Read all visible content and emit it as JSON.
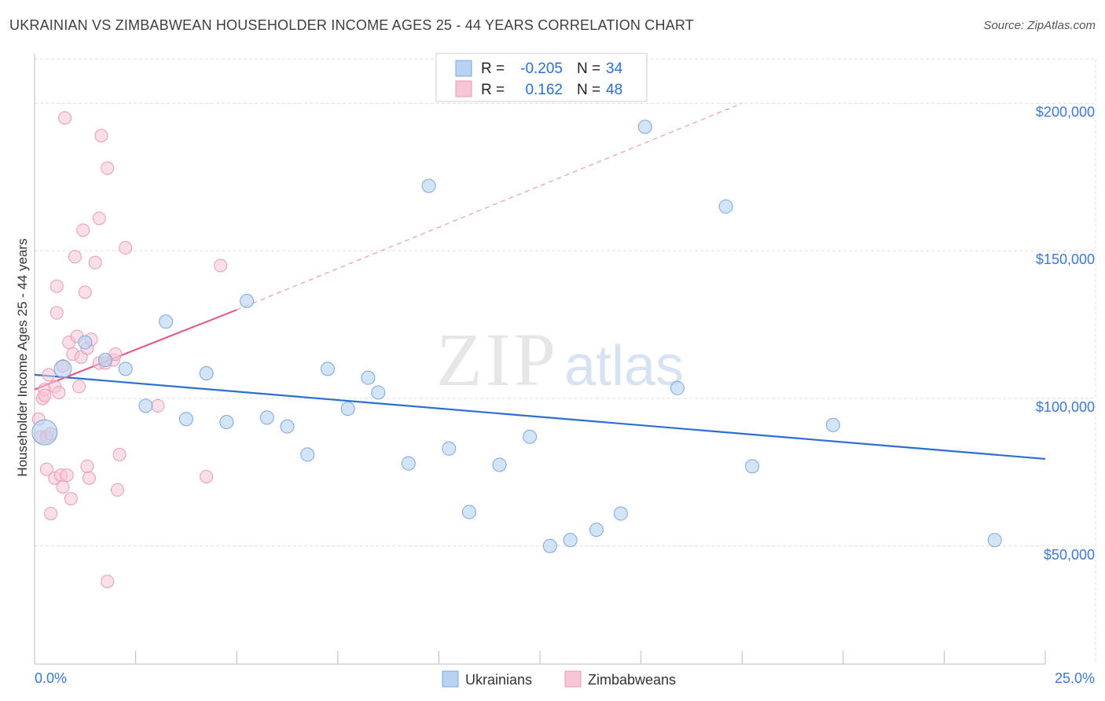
{
  "title": "UKRAINIAN VS ZIMBABWEAN HOUSEHOLDER INCOME AGES 25 - 44 YEARS CORRELATION CHART",
  "source": "Source: ZipAtlas.com",
  "watermark": {
    "zip": "ZIP",
    "atlas": "atlas"
  },
  "colors": {
    "blue_fill": "#b8d2f2",
    "blue_stroke": "#7aa6e0",
    "blue_line": "#2b6fd1",
    "pink_fill": "#f7c5d5",
    "pink_stroke": "#e99ab3",
    "pink_line": "#e0608a",
    "grid": "#dddddd",
    "axis_label": "#3c78d8"
  },
  "legend": {
    "r_label": "R =",
    "n_label": "N =",
    "rows": [
      {
        "r": "-0.205",
        "n": "34"
      },
      {
        "r": "0.162",
        "n": "48"
      }
    ]
  },
  "chart_data": {
    "type": "scatter",
    "title": "UKRAINIAN VS ZIMBABWEAN HOUSEHOLDER INCOME AGES 25 - 44 YEARS CORRELATION CHART",
    "xlabel": "",
    "ylabel": "Householder Income Ages 25 - 44 years",
    "xlim": [
      0,
      25
    ],
    "ylim": [
      10000,
      215000
    ],
    "x_tick_labels": [
      "0.0%",
      "25.0%"
    ],
    "y_ticks": [
      50000,
      100000,
      150000,
      200000
    ],
    "y_tick_labels": [
      "$50,000",
      "$100,000",
      "$150,000",
      "$200,000"
    ],
    "grid": true,
    "legend_position": "bottom",
    "series": [
      {
        "name": "Ukrainians",
        "color": "#b8d2f2",
        "points": [
          [
            0.25,
            88500
          ],
          [
            0.7,
            110000
          ],
          [
            1.25,
            119000
          ],
          [
            1.75,
            113000
          ],
          [
            2.25,
            110000
          ],
          [
            2.75,
            97500
          ],
          [
            3.25,
            126000
          ],
          [
            3.75,
            93000
          ],
          [
            4.25,
            108500
          ],
          [
            4.75,
            92000
          ],
          [
            5.25,
            133000
          ],
          [
            5.75,
            93500
          ],
          [
            6.25,
            90500
          ],
          [
            6.75,
            81000
          ],
          [
            7.25,
            110000
          ],
          [
            7.75,
            96500
          ],
          [
            8.25,
            107000
          ],
          [
            8.5,
            102000
          ],
          [
            9.25,
            78000
          ],
          [
            9.75,
            172000
          ],
          [
            10.25,
            83000
          ],
          [
            10.75,
            61500
          ],
          [
            11.5,
            77500
          ],
          [
            12.25,
            87000
          ],
          [
            12.75,
            50000
          ],
          [
            13.25,
            52000
          ],
          [
            13.9,
            55500
          ],
          [
            14.5,
            61000
          ],
          [
            15.1,
            192000
          ],
          [
            15.9,
            103500
          ],
          [
            17.1,
            165000
          ],
          [
            17.75,
            77000
          ],
          [
            19.75,
            91000
          ],
          [
            23.75,
            52000
          ]
        ],
        "trend": {
          "x": [
            0,
            25
          ],
          "y": [
            108000,
            79500
          ]
        }
      },
      {
        "name": "Zimbabweans",
        "color": "#f7c5d5",
        "points": [
          [
            0.1,
            93000
          ],
          [
            0.15,
            87000
          ],
          [
            0.2,
            100000
          ],
          [
            0.25,
            103000
          ],
          [
            0.3,
            87000
          ],
          [
            0.3,
            76000
          ],
          [
            0.35,
            108000
          ],
          [
            0.4,
            88000
          ],
          [
            0.4,
            61000
          ],
          [
            0.5,
            73000
          ],
          [
            0.5,
            104000
          ],
          [
            0.55,
            129000
          ],
          [
            0.55,
            138000
          ],
          [
            0.6,
            102000
          ],
          [
            0.65,
            74000
          ],
          [
            0.7,
            111000
          ],
          [
            0.7,
            70000
          ],
          [
            0.75,
            195000
          ],
          [
            0.8,
            74000
          ],
          [
            0.85,
            119000
          ],
          [
            0.9,
            66000
          ],
          [
            0.95,
            115000
          ],
          [
            1.0,
            148000
          ],
          [
            1.05,
            121000
          ],
          [
            1.1,
            104000
          ],
          [
            1.15,
            114000
          ],
          [
            1.2,
            157000
          ],
          [
            1.25,
            136000
          ],
          [
            1.3,
            117000
          ],
          [
            1.3,
            77000
          ],
          [
            1.35,
            73000
          ],
          [
            1.4,
            120000
          ],
          [
            1.5,
            146000
          ],
          [
            1.6,
            161000
          ],
          [
            1.8,
            38000
          ],
          [
            1.6,
            112000
          ],
          [
            1.65,
            189000
          ],
          [
            1.75,
            112000
          ],
          [
            1.8,
            178000
          ],
          [
            1.95,
            113000
          ],
          [
            2.0,
            115000
          ],
          [
            2.05,
            69000
          ],
          [
            2.1,
            81000
          ],
          [
            2.25,
            151000
          ],
          [
            3.05,
            97500
          ],
          [
            4.25,
            73500
          ],
          [
            4.6,
            145000
          ],
          [
            0.25,
            101000
          ]
        ],
        "trend": {
          "x": [
            0,
            5
          ],
          "y": [
            103000,
            130000
          ]
        },
        "trend_extension": {
          "x": [
            5,
            17.5
          ],
          "y": [
            130000,
            200000
          ]
        }
      }
    ]
  }
}
